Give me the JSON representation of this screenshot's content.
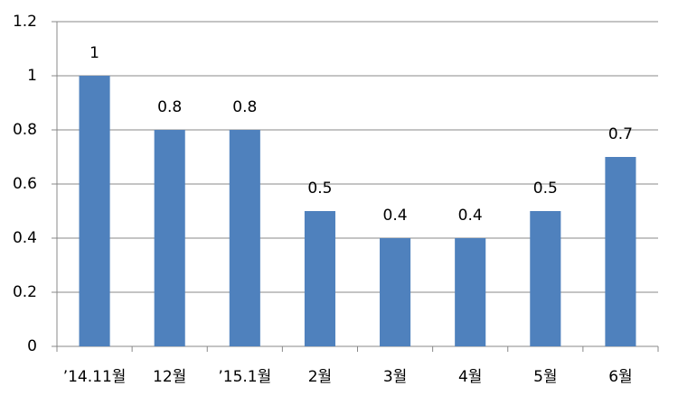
{
  "chart_data": {
    "type": "bar",
    "categories": [
      "’14.11월",
      "12월",
      "’15.1월",
      "2월",
      "3월",
      "4월",
      "5월",
      "6월"
    ],
    "values": [
      1,
      0.8,
      0.8,
      0.5,
      0.4,
      0.4,
      0.5,
      0.7
    ],
    "color": "#4f81bd",
    "ylim": [
      0,
      1.2
    ],
    "yticks": [
      0,
      0.2,
      0.4,
      0.6,
      0.8,
      1,
      1.2
    ],
    "grid": true
  }
}
